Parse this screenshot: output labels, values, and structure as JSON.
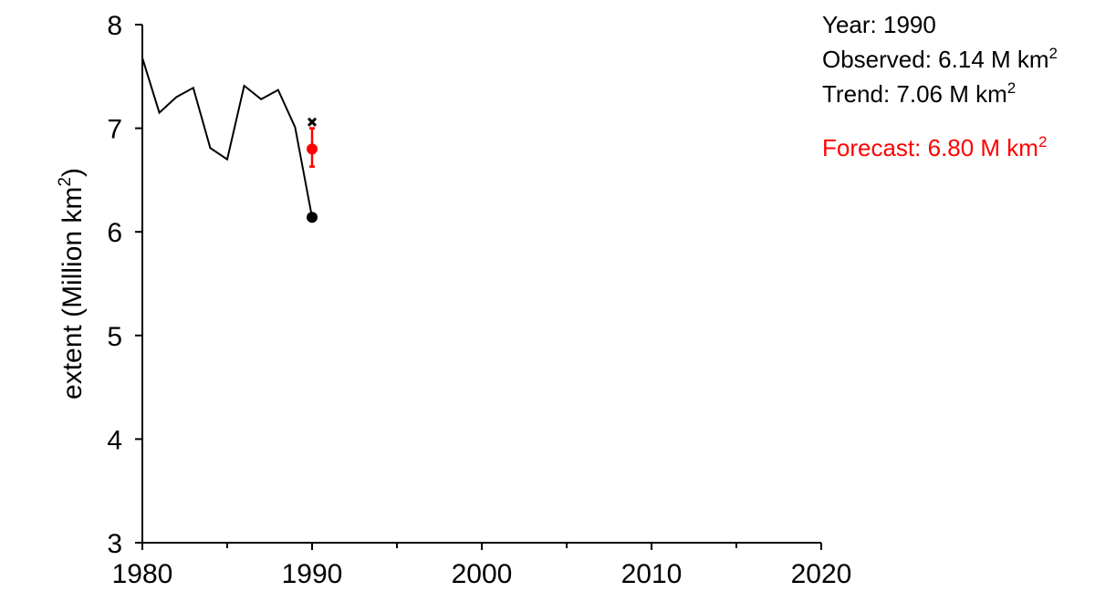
{
  "info": {
    "year_text": "Year: 1990",
    "observed_text": "Observed: 6.14 M km",
    "trend_text": "Trend: 7.06 M km",
    "forecast_text": "Forecast: 6.80 M km",
    "superscript": "2"
  },
  "chart_data": {
    "type": "line",
    "ylabel": "extent (Million km",
    "ylabel_sup": "2",
    "ylabel_close": ")",
    "xlim": [
      1980,
      2020
    ],
    "ylim": [
      3,
      8
    ],
    "x_ticks": [
      1980,
      1990,
      2000,
      2010,
      2020
    ],
    "x_minor_ticks": [
      1985,
      1995,
      2005,
      2015
    ],
    "y_ticks": [
      3,
      4,
      5,
      6,
      7,
      8
    ],
    "grid": false,
    "series": [
      {
        "x": [
          1980,
          1981,
          1982,
          1983,
          1984,
          1985,
          1986,
          1987,
          1988,
          1989,
          1990
        ],
        "y": [
          7.68,
          7.15,
          7.3,
          7.39,
          6.81,
          6.7,
          7.41,
          7.28,
          7.37,
          7.01,
          6.14
        ],
        "color": "#000000"
      }
    ],
    "observed_point": {
      "x": 1990,
      "y": 6.14,
      "color": "#000000"
    },
    "trend_point": {
      "x": 1990,
      "y": 7.06,
      "color": "#000000",
      "marker": "x"
    },
    "forecast_point": {
      "x": 1990,
      "y": 6.8,
      "low": 6.63,
      "high": 7.0,
      "color": "#ff0000"
    }
  }
}
